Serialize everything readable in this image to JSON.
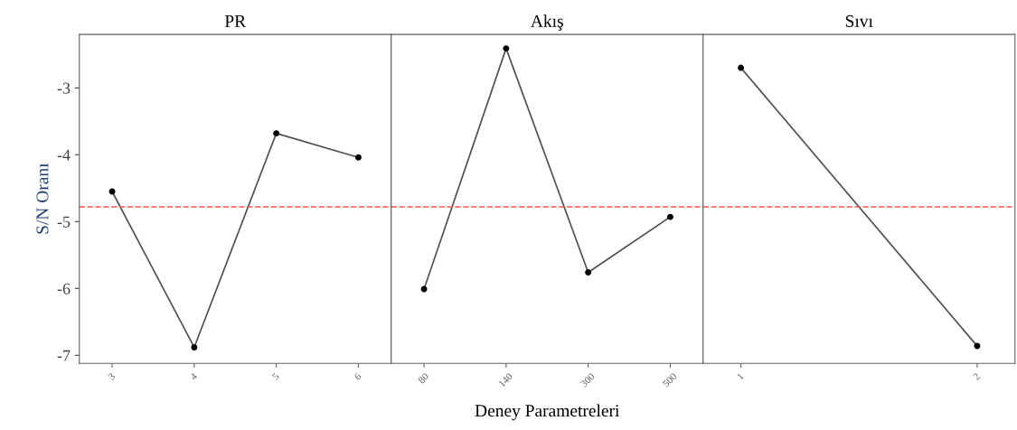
{
  "chart_data": [
    {
      "type": "line",
      "title": "PR",
      "ylabel": "S/N Oranı",
      "categories": [
        "3",
        "4",
        "5",
        "6"
      ],
      "ylim": [
        -7.12,
        -2.2
      ],
      "yticks": [
        -3,
        -4,
        -5,
        -6,
        -7
      ],
      "marker": "circle",
      "grid": false,
      "series": [
        {
          "color": "#505050",
          "values": [
            -4.55,
            -6.88,
            -3.68,
            -4.04
          ]
        }
      ],
      "ref_lines": [
        {
          "axis": "y",
          "value": -4.78,
          "color": "#ff5050",
          "line_style": "dashed"
        }
      ]
    },
    {
      "type": "line",
      "title": "Akış",
      "xlabel": "Deney Parametreleri",
      "categories": [
        "80",
        "140",
        "300",
        "500"
      ],
      "ylim": [
        -7.12,
        -2.2
      ],
      "tick_labels": "x",
      "marker": "circle",
      "grid": false,
      "series": [
        {
          "color": "#505050",
          "values": [
            -6.01,
            -2.41,
            -5.76,
            -4.93
          ]
        }
      ],
      "ref_lines": [
        {
          "axis": "y",
          "value": -4.78,
          "color": "#ff5050",
          "line_style": "dashed"
        }
      ]
    },
    {
      "type": "line",
      "title": "Sıvı",
      "categories": [
        "1",
        "2"
      ],
      "ylim": [
        -7.12,
        -2.2
      ],
      "tick_labels": "x",
      "marker": "circle",
      "grid": false,
      "series": [
        {
          "color": "#505050",
          "values": [
            -2.7,
            -6.86
          ]
        }
      ],
      "ref_lines": [
        {
          "axis": "y",
          "value": -4.78,
          "color": "#ff5050",
          "line_style": "dashed"
        }
      ]
    }
  ]
}
